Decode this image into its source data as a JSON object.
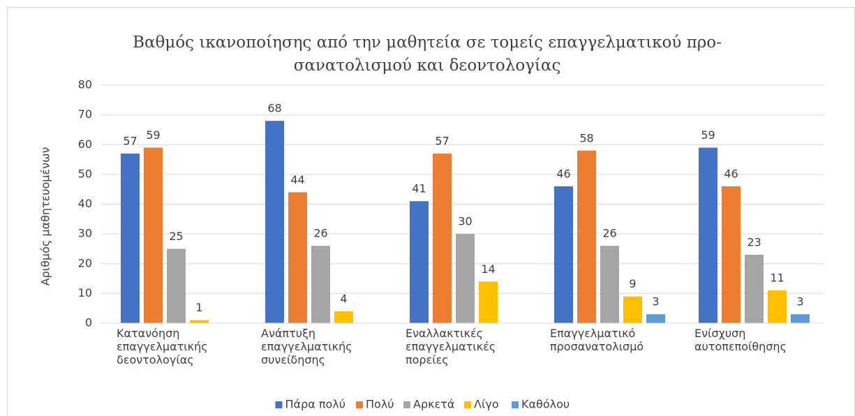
{
  "chart_data": {
    "type": "bar",
    "title": [
      "Βαθμός ικανοποίησης από την μαθητεία σε τομείς επαγγελματικού προ-",
      "σανατολισμού και δεοντολογίας"
    ],
    "y_label": "Αριθμός μαθητευομένων",
    "categories": [
      "Κατανόηση επαγγελματικής δεοντολογίας",
      "Ανάπτυξη επαγγελματικής συνείδησης",
      "Εναλλακτικές επαγγελματικές πορείες",
      "Επαγγελματικό προσανατολισμό",
      "Ενίσχυση αυτοπεποίθησης"
    ],
    "series": [
      {
        "name": "Πάρα πολύ",
        "color": "#4472c4",
        "values": [
          57,
          68,
          41,
          46,
          59
        ]
      },
      {
        "name": "Πολύ",
        "color": "#ed7d31",
        "values": [
          59,
          44,
          57,
          58,
          46
        ]
      },
      {
        "name": "Αρκετά",
        "color": "#a5a5a5",
        "values": [
          25,
          26,
          30,
          26,
          23
        ]
      },
      {
        "name": "Λίγο",
        "color": "#ffc000",
        "values": [
          1,
          4,
          14,
          9,
          11
        ]
      },
      {
        "name": "Καθόλου",
        "color": "#5b9bd5",
        "values": [
          null,
          null,
          null,
          3,
          3
        ]
      }
    ],
    "ylim": [
      0,
      80
    ],
    "yticks": [
      0,
      10,
      20,
      30,
      40,
      50,
      60,
      70,
      80
    ],
    "grid": true,
    "legend": "bottom"
  }
}
